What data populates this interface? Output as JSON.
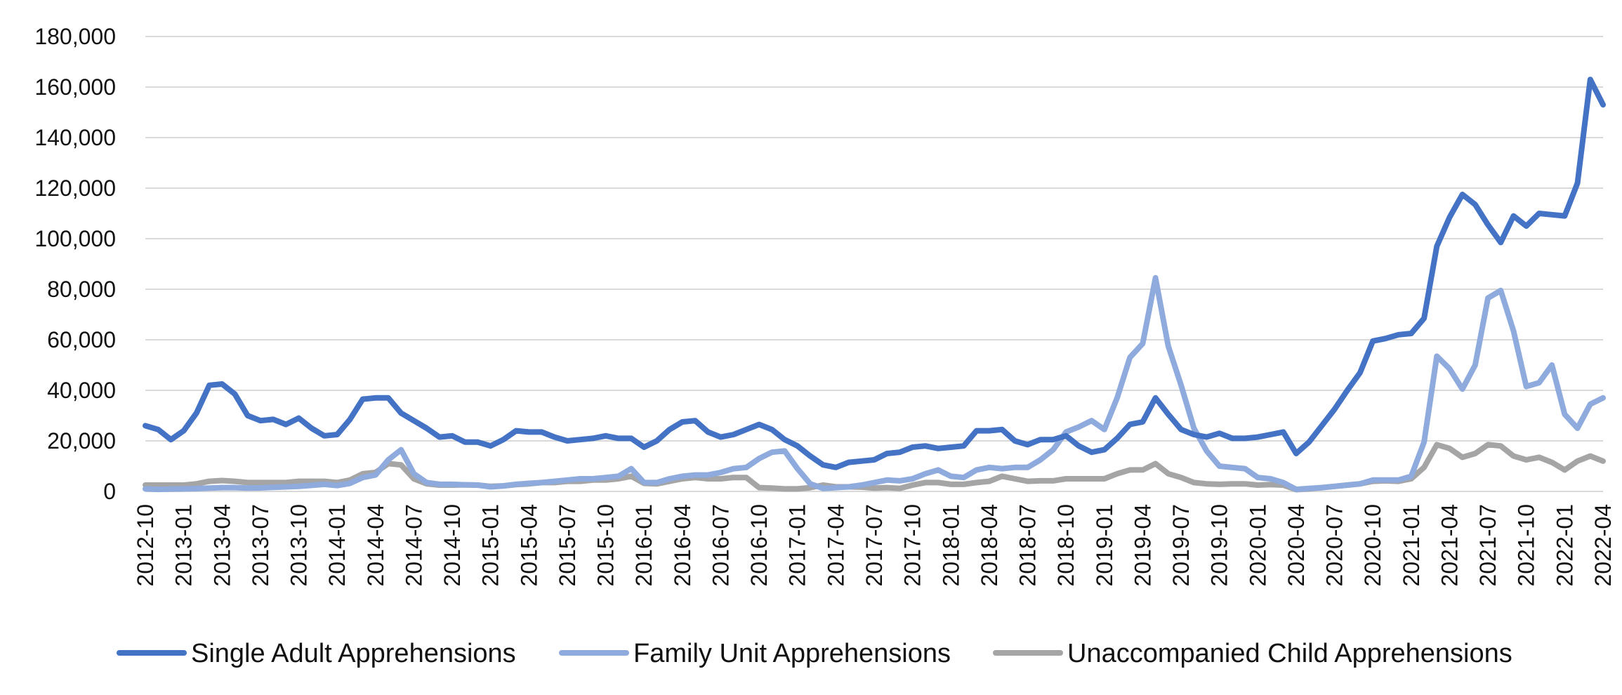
{
  "chart_data": {
    "type": "line",
    "title": "",
    "xlabel": "",
    "ylabel": "",
    "ylim": [
      0,
      180000
    ],
    "y_ticks": [
      0,
      20000,
      40000,
      60000,
      80000,
      100000,
      120000,
      140000,
      160000,
      180000
    ],
    "y_tick_labels": [
      "0",
      "20,000",
      "40,000",
      "60,000",
      "80,000",
      "100,000",
      "120,000",
      "140,000",
      "160,000",
      "180,000"
    ],
    "x": [
      "2012-10",
      "2012-11",
      "2012-12",
      "2013-01",
      "2013-02",
      "2013-03",
      "2013-04",
      "2013-05",
      "2013-06",
      "2013-07",
      "2013-08",
      "2013-09",
      "2013-10",
      "2013-11",
      "2013-12",
      "2014-01",
      "2014-02",
      "2014-03",
      "2014-04",
      "2014-05",
      "2014-06",
      "2014-07",
      "2014-08",
      "2014-09",
      "2014-10",
      "2014-11",
      "2014-12",
      "2015-01",
      "2015-02",
      "2015-03",
      "2015-04",
      "2015-05",
      "2015-06",
      "2015-07",
      "2015-08",
      "2015-09",
      "2015-10",
      "2015-11",
      "2015-12",
      "2016-01",
      "2016-02",
      "2016-03",
      "2016-04",
      "2016-05",
      "2016-06",
      "2016-07",
      "2016-08",
      "2016-09",
      "2016-10",
      "2016-11",
      "2016-12",
      "2017-01",
      "2017-02",
      "2017-03",
      "2017-04",
      "2017-05",
      "2017-06",
      "2017-07",
      "2017-08",
      "2017-09",
      "2017-10",
      "2017-11",
      "2017-12",
      "2018-01",
      "2018-02",
      "2018-03",
      "2018-04",
      "2018-05",
      "2018-06",
      "2018-07",
      "2018-08",
      "2018-09",
      "2018-10",
      "2018-11",
      "2018-12",
      "2019-01",
      "2019-02",
      "2019-03",
      "2019-04",
      "2019-05",
      "2019-06",
      "2019-07",
      "2019-08",
      "2019-09",
      "2019-10",
      "2019-11",
      "2019-12",
      "2020-01",
      "2020-02",
      "2020-03",
      "2020-04",
      "2020-05",
      "2020-06",
      "2020-07",
      "2020-08",
      "2020-09",
      "2020-10",
      "2020-11",
      "2020-12",
      "2021-01",
      "2021-02",
      "2021-03",
      "2021-04",
      "2021-05",
      "2021-06",
      "2021-07",
      "2021-08",
      "2021-09",
      "2021-10",
      "2021-11",
      "2021-12",
      "2022-01",
      "2022-02",
      "2022-03",
      "2022-04"
    ],
    "x_tick_labels": [
      "2012-10",
      "2013-01",
      "2013-04",
      "2013-07",
      "2013-10",
      "2014-01",
      "2014-04",
      "2014-07",
      "2014-10",
      "2015-01",
      "2015-04",
      "2015-07",
      "2015-10",
      "2016-01",
      "2016-04",
      "2016-07",
      "2016-10",
      "2017-01",
      "2017-04",
      "2017-07",
      "2017-10",
      "2018-01",
      "2018-04",
      "2018-07",
      "2018-10",
      "2019-01",
      "2019-04",
      "2019-07",
      "2019-10",
      "2020-01",
      "2020-04",
      "2020-07",
      "2020-10",
      "2021-01",
      "2021-04",
      "2021-07",
      "2021-10",
      "2022-01",
      "2022-04"
    ],
    "grid": true,
    "legend_position": "bottom",
    "series": [
      {
        "name": "Single Adult Apprehensions",
        "color": "#4472C4",
        "values": [
          26000,
          24500,
          20500,
          24000,
          31000,
          42000,
          42500,
          38500,
          30000,
          28000,
          28500,
          26500,
          29000,
          25000,
          22000,
          22500,
          28500,
          36500,
          37000,
          37000,
          31000,
          28000,
          25000,
          21500,
          22000,
          19500,
          19500,
          18000,
          20500,
          24000,
          23500,
          23500,
          21500,
          20000,
          20500,
          21000,
          22000,
          21000,
          21000,
          17500,
          20000,
          24500,
          27500,
          28000,
          23500,
          21500,
          22500,
          24500,
          26500,
          24500,
          20500,
          18000,
          14000,
          10500,
          9500,
          11500,
          12000,
          12500,
          15000,
          15500,
          17500,
          18000,
          17000,
          17500,
          18000,
          24000,
          24000,
          24500,
          20000,
          18500,
          20500,
          20500,
          22000,
          18000,
          15500,
          16500,
          21000,
          26500,
          27500,
          37000,
          30500,
          24500,
          22500,
          21500,
          23000,
          21000,
          21000,
          21500,
          22500,
          23500,
          15000,
          19500,
          26000,
          32500,
          40000,
          47000,
          59500,
          60500,
          62000,
          62500,
          68500,
          97000,
          108500,
          117500,
          113500,
          105500,
          98500,
          109000,
          105000,
          110000,
          109500,
          109000,
          122000,
          163000,
          153000
        ]
      },
      {
        "name": "Family Unit Apprehensions",
        "color": "#8FAADC",
        "values": [
          1000,
          800,
          900,
          1000,
          1100,
          1300,
          1500,
          1500,
          1300,
          1400,
          1600,
          1800,
          2000,
          2400,
          2800,
          2300,
          3200,
          5500,
          6500,
          12500,
          16500,
          7000,
          3500,
          2800,
          2800,
          2600,
          2500,
          1800,
          2200,
          2800,
          3200,
          3500,
          4000,
          4500,
          5000,
          5000,
          5500,
          6000,
          9000,
          3500,
          3500,
          5000,
          6000,
          6500,
          6500,
          7500,
          9000,
          9500,
          13000,
          15500,
          16000,
          9000,
          3000,
          1200,
          1500,
          1800,
          2500,
          3500,
          4500,
          4200,
          5000,
          7000,
          8500,
          6000,
          5500,
          8500,
          9500,
          9000,
          9500,
          9500,
          12500,
          16500,
          23500,
          25500,
          28000,
          24500,
          37000,
          53000,
          58500,
          84500,
          57500,
          42000,
          25000,
          16000,
          10000,
          9500,
          9000,
          5500,
          5000,
          3500,
          800,
          1200,
          1500,
          2000,
          2500,
          3000,
          4500,
          4500,
          4500,
          6000,
          19500,
          53500,
          48500,
          40500,
          50000,
          76500,
          79500,
          63500,
          41500,
          43000,
          50000,
          30500,
          25000,
          34500,
          37000
        ]
      },
      {
        "name": "Unaccompanied Child Apprehensions",
        "color": "#A5A5A5",
        "values": [
          2500,
          2500,
          2500,
          2500,
          3000,
          4000,
          4300,
          4000,
          3500,
          3500,
          3500,
          3500,
          4000,
          4000,
          4000,
          3500,
          4500,
          7000,
          7500,
          11000,
          10500,
          5000,
          3000,
          2500,
          2500,
          2600,
          2500,
          2000,
          2200,
          2700,
          3000,
          3500,
          3500,
          4000,
          4000,
          4500,
          4500,
          5000,
          6000,
          3200,
          3000,
          4000,
          5000,
          5500,
          5000,
          5000,
          5500,
          5500,
          1500,
          1300,
          1000,
          1000,
          1500,
          2500,
          1800,
          1800,
          1700,
          1300,
          1500,
          1200,
          2500,
          3500,
          3500,
          2800,
          2800,
          3500,
          4000,
          6000,
          5000,
          4000,
          4200,
          4200,
          5000,
          5000,
          5000,
          5000,
          7000,
          8500,
          8500,
          11000,
          7000,
          5500,
          3500,
          3000,
          2800,
          3000,
          3000,
          2500,
          2700,
          2500,
          700,
          1000,
          1500,
          2000,
          2500,
          3000,
          4000,
          4200,
          4000,
          5000,
          9500,
          18500,
          17000,
          13500,
          15000,
          18500,
          18000,
          14000,
          12500,
          13500,
          11500,
          8500,
          12000,
          14000,
          12000
        ]
      }
    ]
  }
}
